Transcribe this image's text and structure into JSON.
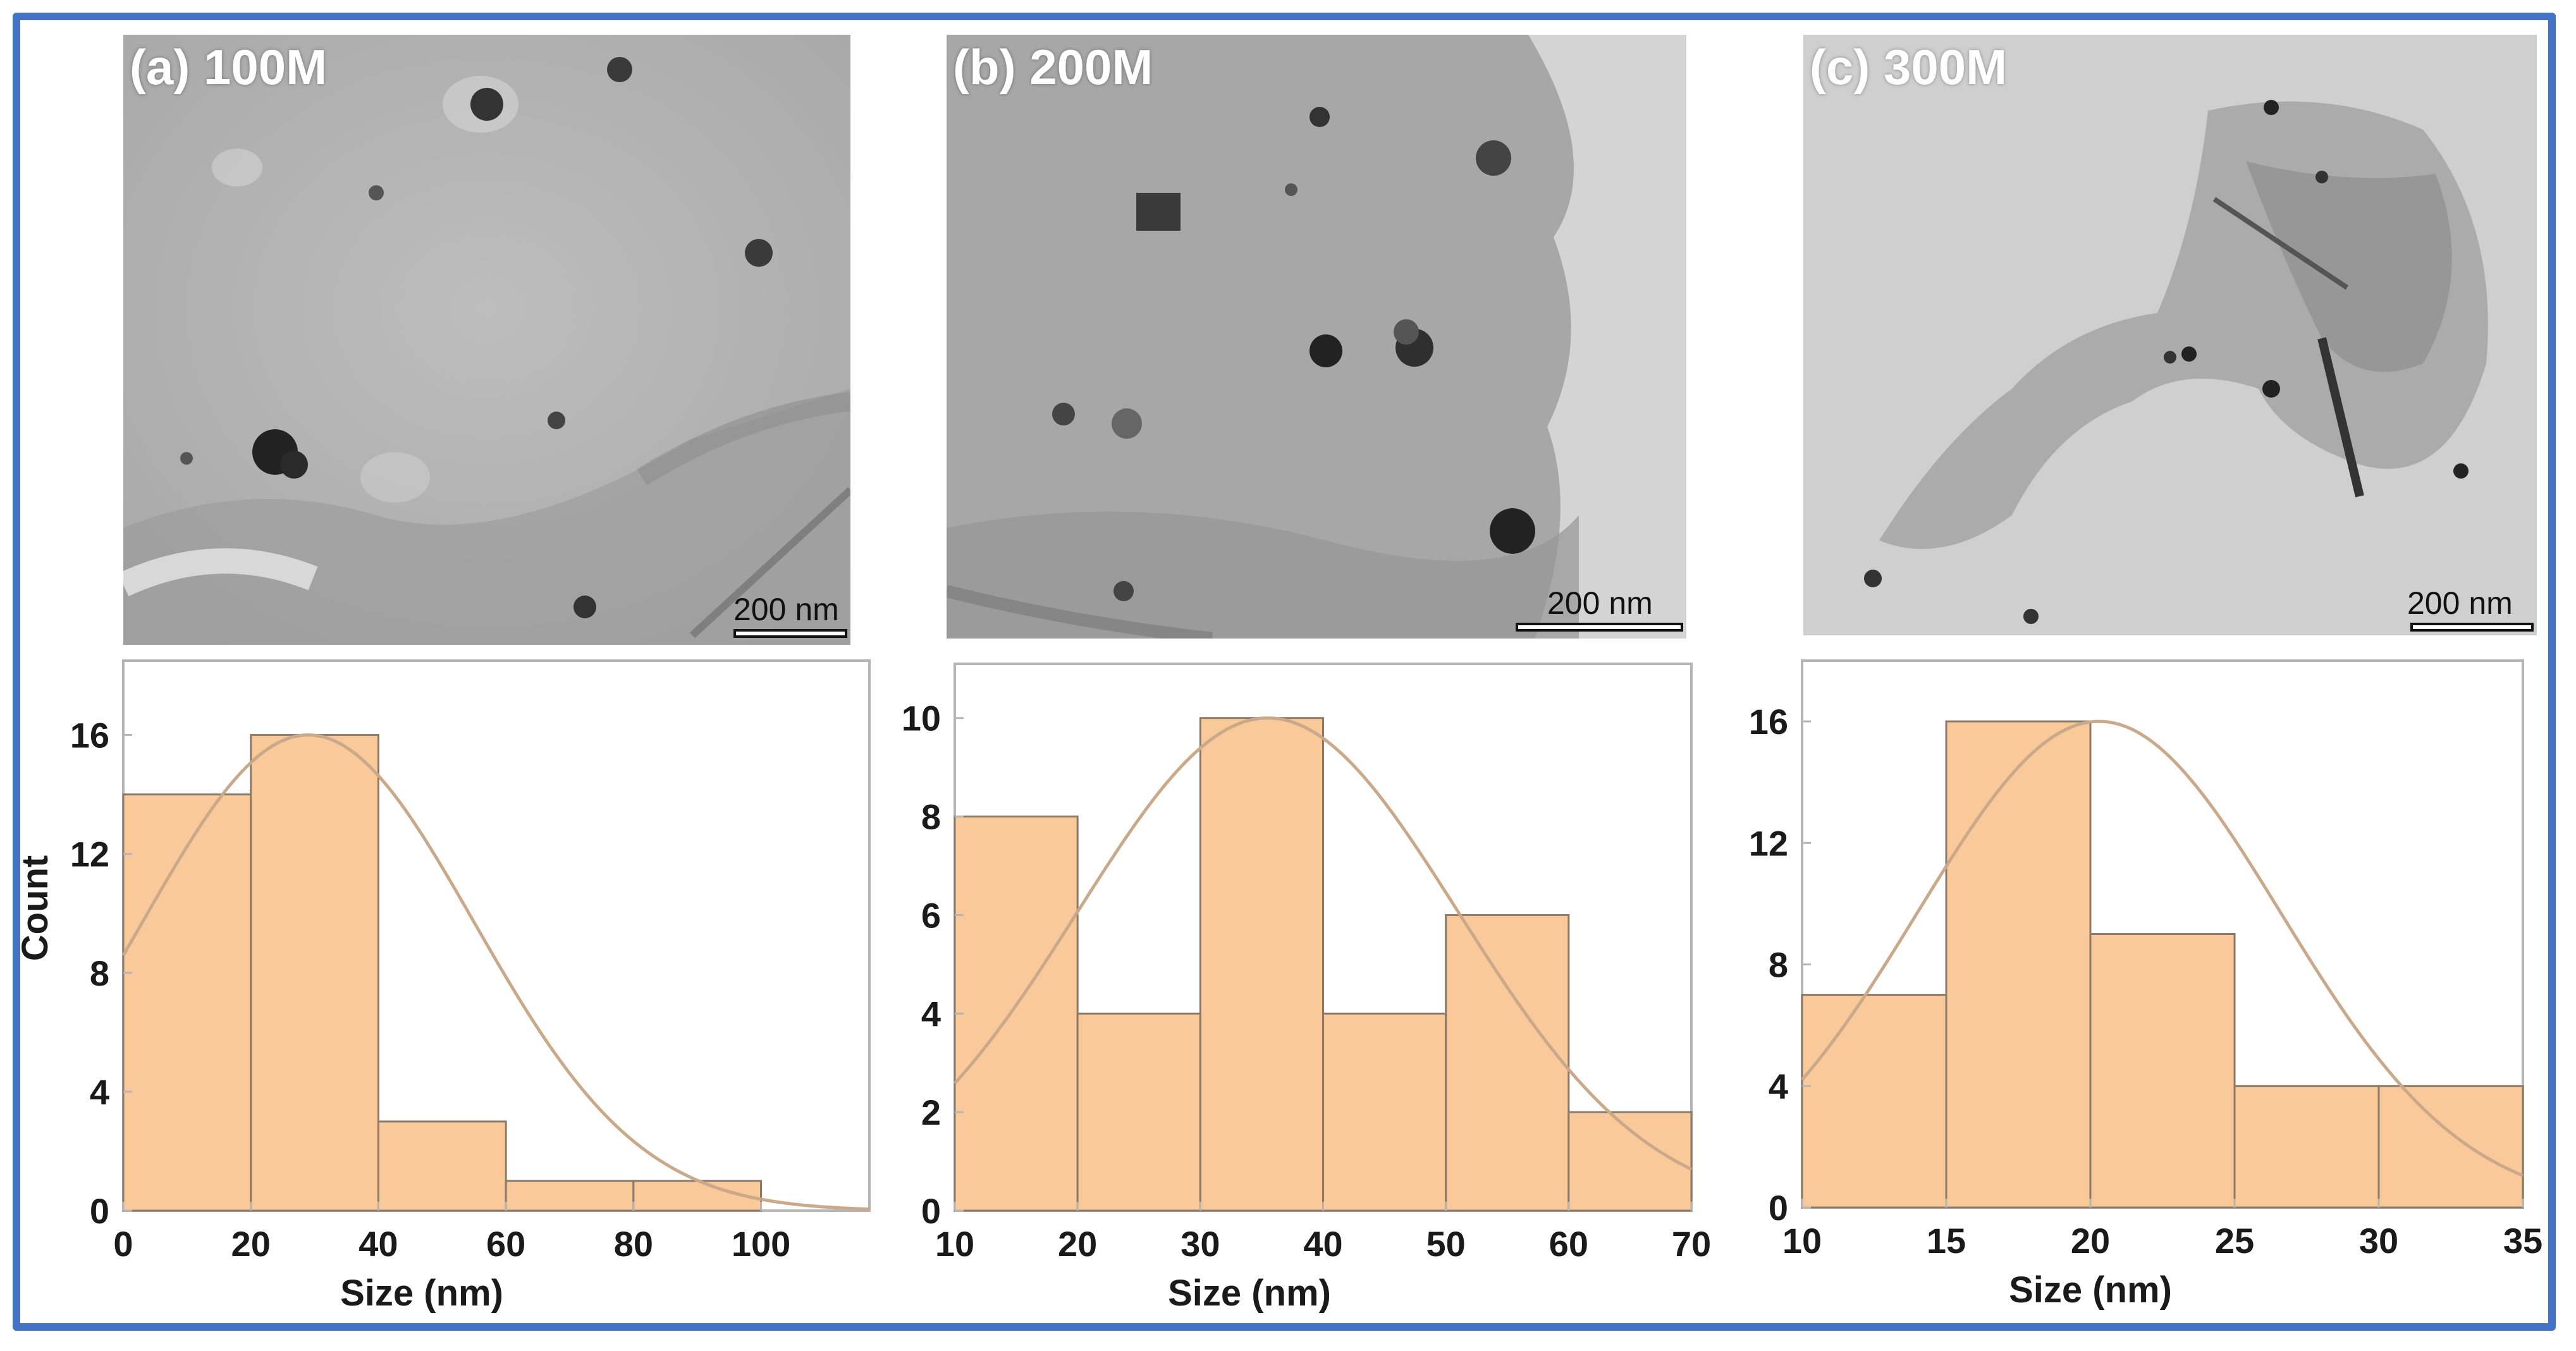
{
  "panels": [
    {
      "label": "(a) 100M",
      "scale_text": "200 nm"
    },
    {
      "label": "(b) 200M",
      "scale_text": "200 nm"
    },
    {
      "label": "(c) 300M",
      "scale_text": "200 nm"
    }
  ],
  "colors": {
    "frame": "#4472c4",
    "bar_fill": "#f9c999",
    "bar_stroke": "#8a7a6a",
    "fit_curve": "#c9a98a",
    "axis": "#b5b5b5"
  },
  "chart_data": [
    {
      "type": "bar",
      "panel": "a",
      "bins": [
        [
          0,
          20
        ],
        [
          20,
          40
        ],
        [
          40,
          60
        ],
        [
          60,
          80
        ],
        [
          80,
          100
        ]
      ],
      "values": [
        14,
        16,
        3,
        1,
        1
      ],
      "xlim": [
        0,
        117
      ],
      "ylim": [
        0,
        18.5
      ],
      "xticks": [
        "0",
        "20",
        "40",
        "60",
        "80",
        "100"
      ],
      "xtick_values": [
        0,
        20,
        40,
        60,
        80,
        100
      ],
      "yticks": [
        "0",
        "4",
        "8",
        "12",
        "16"
      ],
      "ytick_values": [
        0,
        4,
        8,
        12,
        16
      ],
      "xlabel": "Size (nm)",
      "ylabel": "Count",
      "fit": {
        "type": "gaussian",
        "mean": 29,
        "sd": 26,
        "peak": 16
      }
    },
    {
      "type": "bar",
      "panel": "b",
      "bins": [
        [
          10,
          20
        ],
        [
          20,
          30
        ],
        [
          30,
          40
        ],
        [
          40,
          50
        ],
        [
          50,
          60
        ],
        [
          60,
          70
        ]
      ],
      "values": [
        8,
        4,
        10,
        4,
        6,
        2
      ],
      "xlim": [
        10,
        70
      ],
      "ylim": [
        0,
        11.1
      ],
      "xticks": [
        "10",
        "20",
        "30",
        "40",
        "50",
        "60",
        "70"
      ],
      "xtick_values": [
        10,
        20,
        30,
        40,
        50,
        60,
        70
      ],
      "yticks": [
        "0",
        "2",
        "4",
        "6",
        "8",
        "10"
      ],
      "ytick_values": [
        0,
        2,
        4,
        6,
        8,
        10
      ],
      "xlabel": "Size (nm)",
      "ylabel": "",
      "fit": {
        "type": "gaussian",
        "mean": 35.5,
        "sd": 15.5,
        "peak": 10
      }
    },
    {
      "type": "bar",
      "panel": "c",
      "bins": [
        [
          10,
          15
        ],
        [
          15,
          20
        ],
        [
          20,
          25
        ],
        [
          25,
          30
        ],
        [
          30,
          35
        ]
      ],
      "values": [
        7,
        16,
        9,
        4,
        4
      ],
      "xlim": [
        10,
        35
      ],
      "ylim": [
        0,
        18
      ],
      "xticks": [
        "10",
        "15",
        "20",
        "25",
        "30",
        "35"
      ],
      "xtick_values": [
        10,
        15,
        20,
        25,
        30,
        35
      ],
      "yticks": [
        "0",
        "4",
        "8",
        "12",
        "16"
      ],
      "ytick_values": [
        0,
        4,
        8,
        12,
        16
      ],
      "xlabel": "Size (nm)",
      "ylabel": "",
      "fit": {
        "type": "gaussian",
        "mean": 20.3,
        "sd": 6.3,
        "peak": 16
      }
    }
  ]
}
